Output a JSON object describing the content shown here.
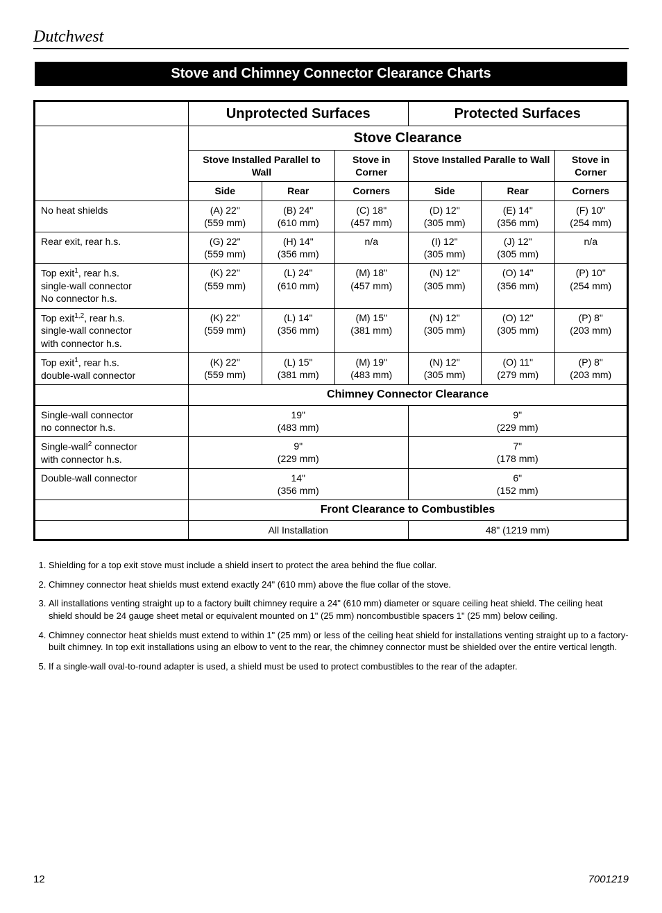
{
  "brand": "Dutchwest",
  "titleBar": "Stove and Chimney Connector Clearance Charts",
  "headers": {
    "unprotected": "Unprotected Surfaces",
    "protected": "Protected Surfaces",
    "stoveClearance": "Stove Clearance",
    "stoveParallel": "Stove Installed Parallel to Wall",
    "stoveParallelTypo": "Stove Installed Paralle to Wall",
    "stoveCorner": "Stove in Corner",
    "side": "Side",
    "rear": "Rear",
    "corners": "Corners",
    "chimney": "Chimney Connector Clearance",
    "front": "Front Clearance to Combustibles",
    "allInstall": "All Installation"
  },
  "rows": {
    "r1": {
      "label": "No heat shields",
      "c": [
        [
          "(A) 22\"",
          "(559 mm)"
        ],
        [
          "(B) 24\"",
          "(610 mm)"
        ],
        [
          "(C) 18\"",
          "(457 mm)"
        ],
        [
          "(D) 12\"",
          "(305 mm)"
        ],
        [
          "(E) 14\"",
          "(356 mm)"
        ],
        [
          "(F) 10\"",
          "(254 mm)"
        ]
      ]
    },
    "r2": {
      "label": "Rear exit, rear h.s.",
      "c": [
        [
          "(G) 22\"",
          "(559 mm)"
        ],
        [
          "(H) 14\"",
          "(356 mm)"
        ],
        [
          "n/a",
          ""
        ],
        [
          "(I) 12\"",
          "(305 mm)"
        ],
        [
          "(J) 12\"",
          "(305 mm)"
        ],
        [
          "n/a",
          ""
        ]
      ]
    },
    "r3": {
      "labelHtml": "Top exit<sup>1</sup>, rear h.s. single-wall connector No connector h.s.",
      "c": [
        [
          "(K) 22\"",
          "(559 mm)"
        ],
        [
          "(L) 24\"",
          "(610 mm)"
        ],
        [
          "(M) 18\"",
          "(457 mm)"
        ],
        [
          "(N) 12\"",
          "(305 mm)"
        ],
        [
          "(O) 14\"",
          "(356 mm)"
        ],
        [
          "(P) 10\"",
          "(254 mm)"
        ]
      ]
    },
    "r4": {
      "labelHtml": "Top exit<sup>1,2</sup>, rear h.s. single-wall connector with connector h.s.",
      "c": [
        [
          "(K) 22\"",
          "(559 mm)"
        ],
        [
          "(L) 14\"",
          "(356 mm)"
        ],
        [
          "(M) 15\"",
          "(381 mm)"
        ],
        [
          "(N) 12\"",
          "(305 mm)"
        ],
        [
          "(O) 12\"",
          "(305 mm)"
        ],
        [
          "(P) 8\"",
          "(203 mm)"
        ]
      ]
    },
    "r5": {
      "labelHtml": "Top exit<sup>1</sup>, rear h.s. double-wall connector",
      "c": [
        [
          "(K) 22\"",
          "(559 mm)"
        ],
        [
          "(L) 15\"",
          "(381 mm)"
        ],
        [
          "(M) 19\"",
          "(483 mm)"
        ],
        [
          "(N) 12\"",
          "(305 mm)"
        ],
        [
          "(O) 11\"",
          "(279 mm)"
        ],
        [
          "(P) 8\"",
          "(203 mm)"
        ]
      ]
    },
    "cc1": {
      "label": "Single-wall connector no connector h.s.",
      "u": [
        "19\"",
        "(483 mm)"
      ],
      "p": [
        "9\"",
        "(229 mm)"
      ]
    },
    "cc2": {
      "labelHtml": "Single-wall<sup>2</sup> connector with connector h.s.",
      "u": [
        "9\"",
        "(229 mm)"
      ],
      "p": [
        "7\"",
        "(178 mm)"
      ]
    },
    "cc3": {
      "label": "Double-wall connector",
      "u": [
        "14\"",
        "(356 mm)"
      ],
      "p": [
        "6\"",
        "(152 mm)"
      ]
    },
    "front": "48\" (1219 mm)"
  },
  "footnotes": [
    "Shielding for a top exit stove must include a shield insert to protect the area behind the flue collar.",
    "Chimney connector heat shields must extend exactly 24\" (610 mm) above the flue collar of the stove.",
    "All installations venting straight up to a factory built chimney require a 24\" (610 mm) diameter or square ceiling heat shield. The ceiling heat shield should be 24 gauge sheet metal or equivalent mounted on 1\" (25 mm) noncombustible spacers 1\" (25 mm) below ceiling.",
    "Chimney connector heat shields must extend to within 1\" (25 mm) or less of the ceiling heat shield for installations venting straight up to a factory-built chimney.  In top exit installations using an elbow to vent to the rear, the chimney connector must be shielded over the entire vertical length.",
    "If a single-wall oval-to-round adapter is used, a shield must be used to protect combustibles to the rear of the adapter."
  ],
  "pageNumber": "12",
  "docNumber": "7001219",
  "colors": {
    "titleBg": "#000000",
    "titleFg": "#ffffff",
    "pageBg": "#ffffff",
    "text": "#000000"
  },
  "typography": {
    "brandFont": "Times New Roman italic",
    "brandSize": 24,
    "titleSize": 20,
    "bodySize": 14
  }
}
